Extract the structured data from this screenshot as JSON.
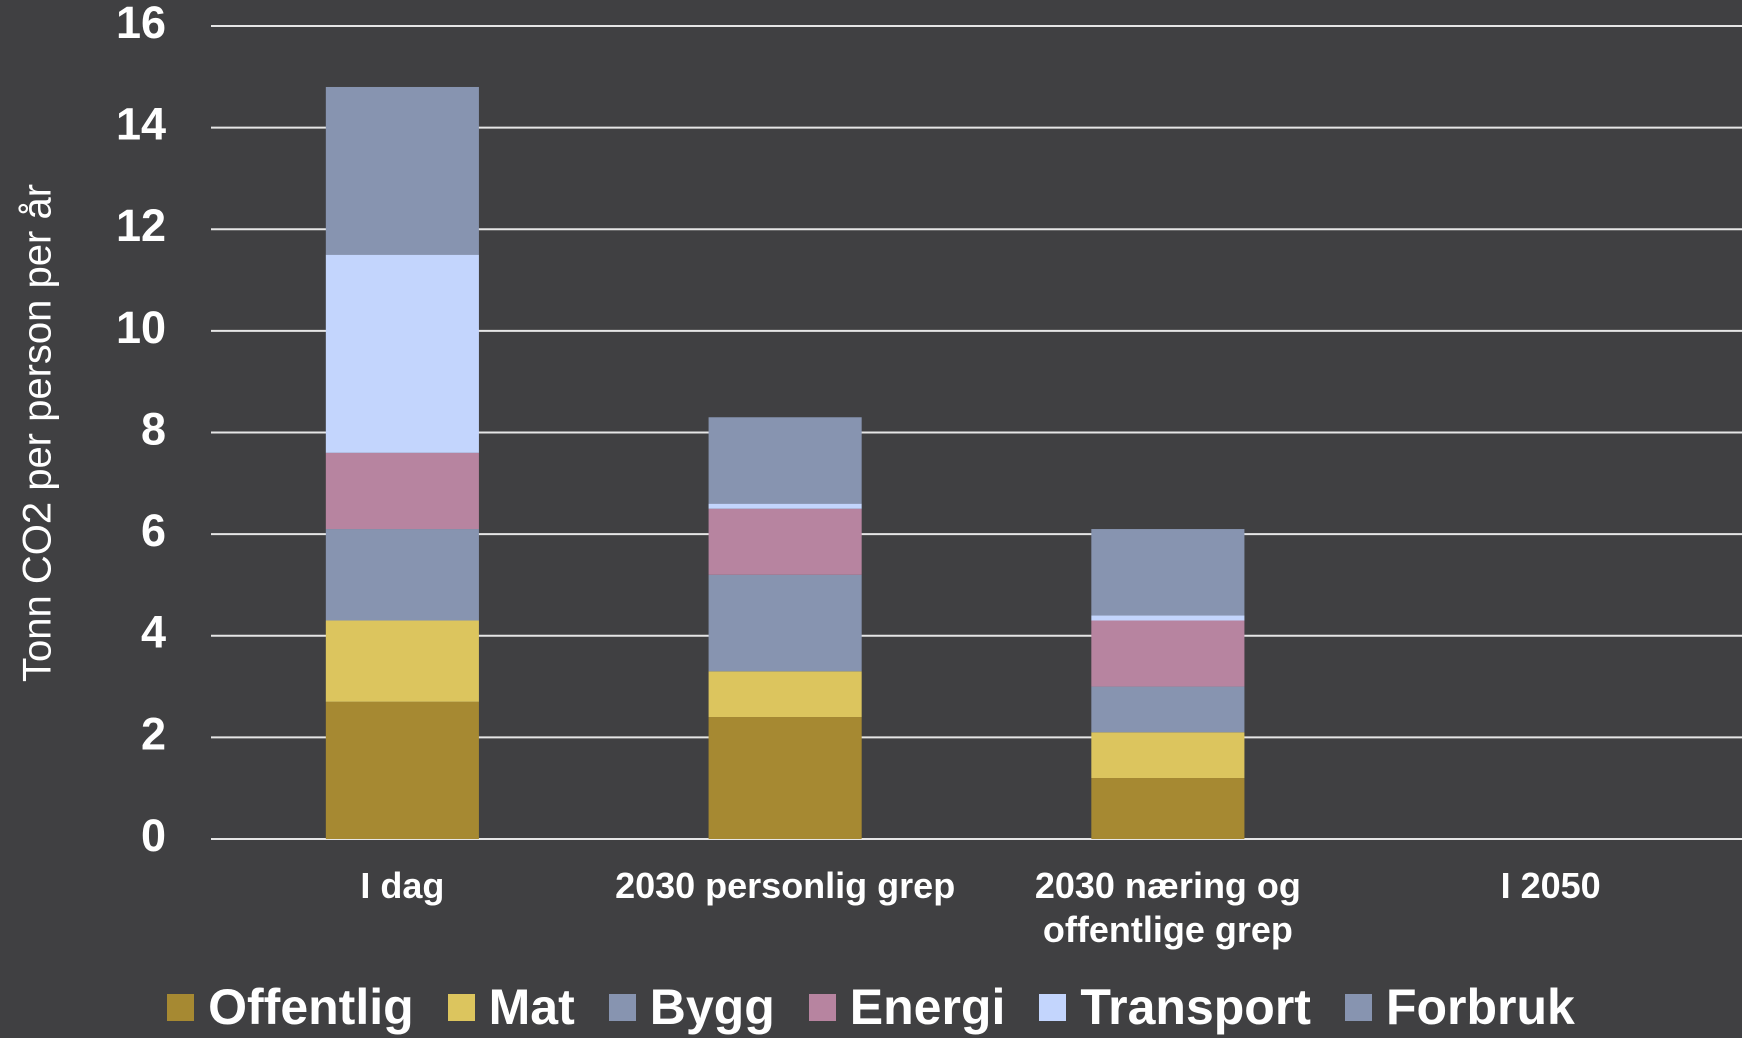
{
  "chart_data": {
    "type": "stacked_bar",
    "y_axis_label": "Tonn CO2 per person per år",
    "categories": [
      "I dag",
      "2030 personlig grep",
      "2030 næring og offentlige grep",
      "I 2050"
    ],
    "series": [
      {
        "name": "Offentlig",
        "color": "#a68932",
        "values": [
          2.7,
          2.4,
          1.2,
          0
        ]
      },
      {
        "name": "Mat",
        "color": "#dcc55e",
        "values": [
          1.6,
          0.9,
          0.9,
          0
        ]
      },
      {
        "name": "Bygg",
        "color": "#8794b0",
        "values": [
          1.8,
          1.9,
          0.9,
          0
        ]
      },
      {
        "name": "Energi",
        "color": "#b784a0",
        "values": [
          1.5,
          1.3,
          1.3,
          0
        ]
      },
      {
        "name": "Transport",
        "color": "#c3d5fd",
        "values": [
          3.9,
          0.1,
          0.1,
          0
        ]
      },
      {
        "name": "Forbruk",
        "color": "#8794b0",
        "values": [
          3.3,
          1.7,
          1.7,
          0
        ]
      }
    ],
    "ylim": [
      0,
      16
    ],
    "yticks": [
      0,
      2,
      4,
      6,
      8,
      10,
      12,
      14,
      16
    ],
    "grid": true,
    "legend": "bottom"
  }
}
